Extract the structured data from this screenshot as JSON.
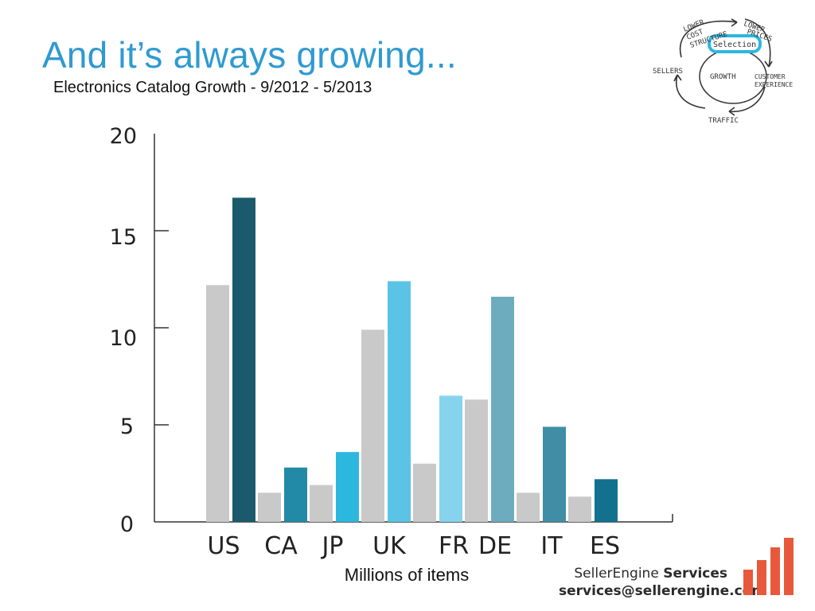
{
  "slide": {
    "title": "And it’s always growing...",
    "subtitle": "Electronics Catalog Growth - 9/2012 - 5/2013"
  },
  "chart_data": {
    "type": "bar",
    "categories": [
      "US",
      "CA",
      "JP",
      "UK",
      "FR",
      "DE",
      "IT",
      "ES"
    ],
    "series": [
      {
        "values": [
          12.2,
          1.5,
          1.9,
          9.9,
          3.0,
          6.3,
          1.5,
          1.3
        ],
        "color": "#c9c9c9"
      },
      {
        "values": [
          16.7,
          2.8,
          3.6,
          12.4,
          6.5,
          11.6,
          4.9,
          2.2
        ],
        "colors": [
          "#1b5a6c",
          "#228aa6",
          "#2cb7df",
          "#5bc4e6",
          "#86d3ee",
          "#6dacbf",
          "#3f8ea6",
          "#12718f"
        ]
      }
    ],
    "yticks": [
      0,
      5,
      10,
      15,
      20
    ],
    "ylim": [
      0,
      20
    ],
    "xlabel": "Millions of items",
    "ylabel": "",
    "grid": false,
    "legend": "none"
  },
  "flywheel": {
    "labels": [
      "LOWER",
      "COST",
      "STRUCTURE",
      "LOWER",
      "PRICES",
      "Selection",
      "SELLERS",
      "GROWTH",
      "CUSTOMER",
      "EXPERIENCE",
      "TRAFFIC"
    ]
  },
  "footer": {
    "brand_name": "SellerEngine",
    "brand_suffix": "Services",
    "email": "services@sellerengine.com",
    "logo_colors": [
      "#e8593b",
      "#e14a2f"
    ]
  }
}
